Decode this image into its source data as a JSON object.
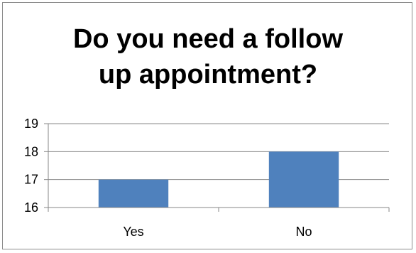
{
  "chart_data": {
    "type": "bar",
    "title_lines": [
      "Do you need a follow",
      "up appointment?"
    ],
    "categories": [
      "Yes",
      "No"
    ],
    "values": [
      17,
      18
    ],
    "ylim": [
      16,
      19
    ],
    "yticks": [
      16,
      17,
      18,
      19
    ],
    "grid": true,
    "legend": "none",
    "colors": {
      "bar": "#4f81bd",
      "grid": "#878787",
      "axis": "#878787"
    }
  }
}
